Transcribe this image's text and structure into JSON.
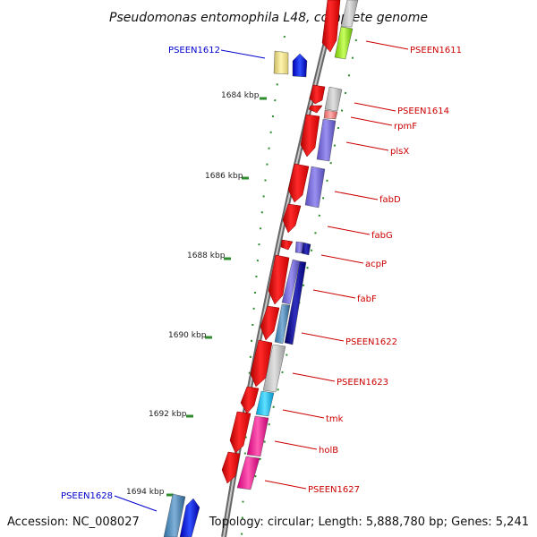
{
  "title": "Pseudomonas entomophila L48, complete genome",
  "footer": {
    "accession": "Accession: NC_008027",
    "topology": "Topology: circular; Length: 5,888,780 bp; Genes: 5,241"
  },
  "kbp_labels": [
    "1684 kbp",
    "1686 kbp",
    "1688 kbp",
    "1690 kbp",
    "1692 kbp",
    "1694 kbp"
  ],
  "genes_right": [
    "PSEEN1611",
    "PSEEN1614",
    "rpmF",
    "plsX",
    "fabD",
    "fabG",
    "acpP",
    "fabF",
    "PSEEN1622",
    "PSEEN1623",
    "tmk",
    "holB",
    "PSEEN1627"
  ],
  "genes_left": [
    "PSEEN1612",
    "PSEEN1628"
  ],
  "colors": {
    "backbone": "#888888",
    "gene_forward": "#ff0000",
    "label_red": "#cc0000",
    "label_blue": "#0000cc",
    "ticks": "#228b22"
  }
}
